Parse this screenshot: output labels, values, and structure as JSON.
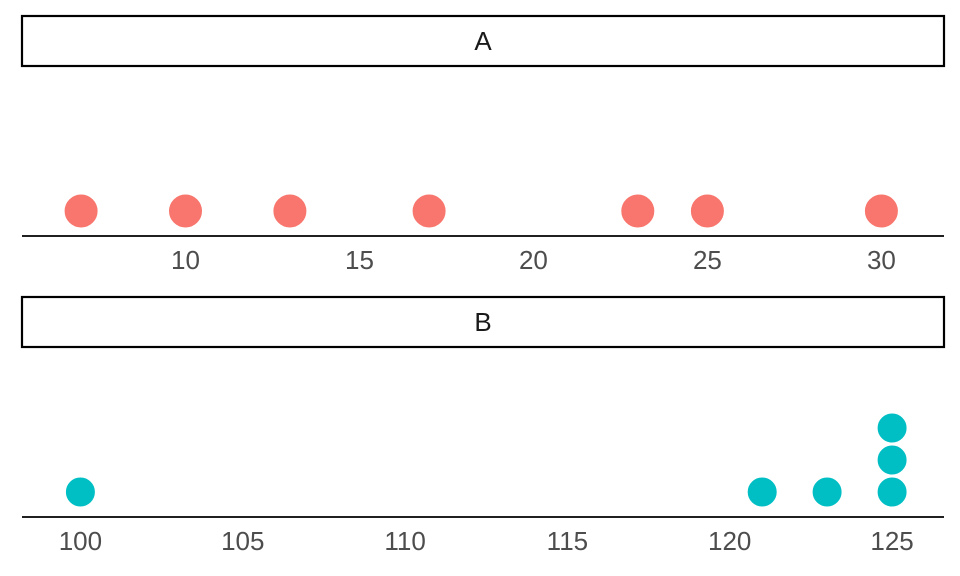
{
  "chart_data": {
    "type": "dotplot",
    "facets": [
      {
        "label": "A",
        "color": "#F8766D",
        "xlim": [
          5.3,
          31.8
        ],
        "ticks": [
          10,
          15,
          20,
          25,
          30
        ],
        "points": [
          {
            "x": 7,
            "stack": 1
          },
          {
            "x": 10,
            "stack": 1
          },
          {
            "x": 13,
            "stack": 1
          },
          {
            "x": 17,
            "stack": 1
          },
          {
            "x": 23,
            "stack": 1
          },
          {
            "x": 25,
            "stack": 1
          },
          {
            "x": 30,
            "stack": 1
          }
        ]
      },
      {
        "label": "B",
        "color": "#00BFC4",
        "xlim": [
          98.2,
          126.6
        ],
        "ticks": [
          100,
          105,
          110,
          115,
          120,
          125
        ],
        "points": [
          {
            "x": 100,
            "stack": 1
          },
          {
            "x": 121,
            "stack": 1
          },
          {
            "x": 123,
            "stack": 1
          },
          {
            "x": 125,
            "stack": 1
          },
          {
            "x": 125,
            "stack": 2
          },
          {
            "x": 125,
            "stack": 3
          }
        ]
      }
    ],
    "xlabel": "",
    "ylabel": "",
    "grid": false,
    "legend": "none"
  }
}
